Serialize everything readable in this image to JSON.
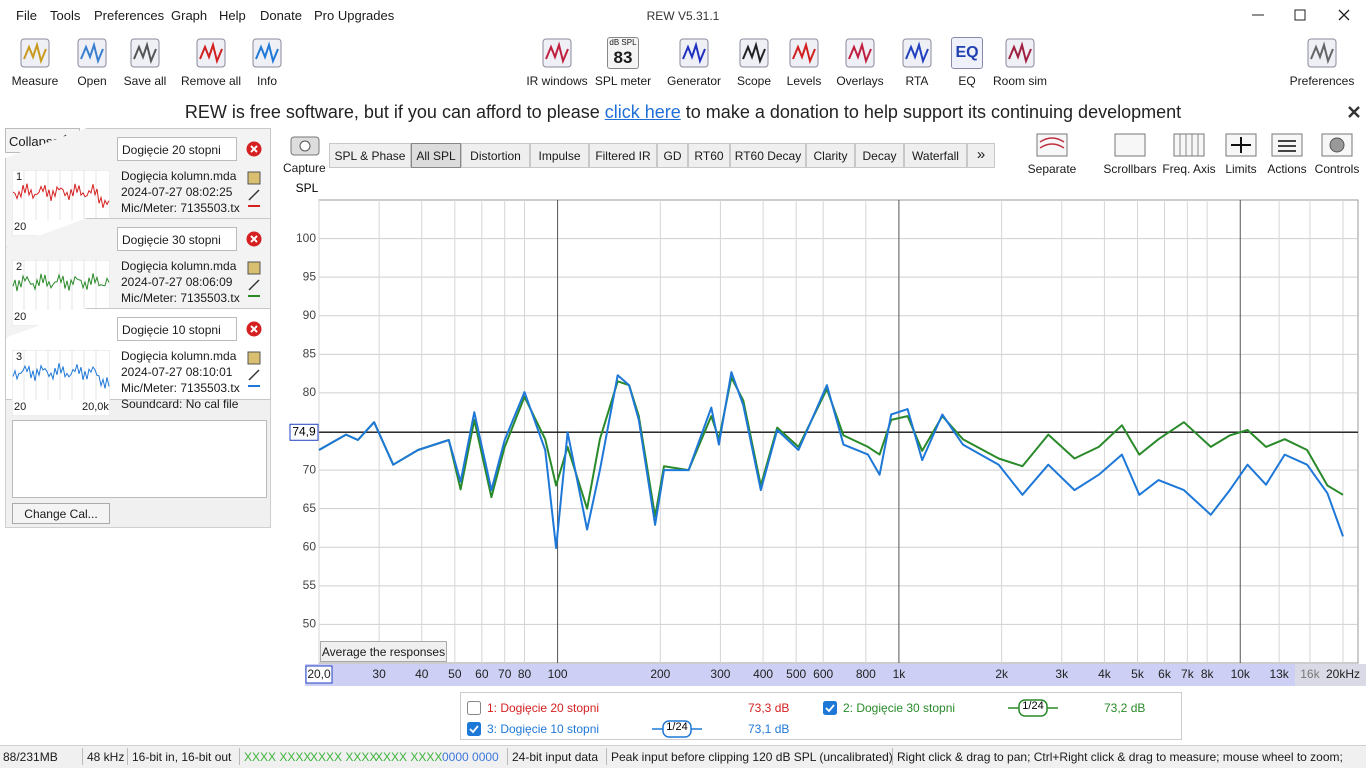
{
  "window": {
    "title": "REW V5.31.1"
  },
  "menu": [
    "File",
    "Tools",
    "Preferences",
    "Graph",
    "Help",
    "Donate",
    "Pro Upgrades"
  ],
  "toolbar": {
    "left": [
      "Measure",
      "Open",
      "Save all",
      "Remove all",
      "Info"
    ],
    "center": [
      "IR windows",
      "SPL meter",
      "Generator",
      "Scope",
      "Levels",
      "Overlays",
      "RTA",
      "EQ",
      "Room sim"
    ],
    "spl_meter_icon": {
      "unit": "dB SPL",
      "value": "83"
    },
    "eq_icon": "EQ",
    "right": "Preferences"
  },
  "banner": {
    "before": "REW is free software, but if you can afford to please",
    "link": "click here",
    "after": "to make a donation to help support its continuing development"
  },
  "panel": {
    "collapse": "Collapse",
    "measurements": [
      {
        "number": "1",
        "name": "Dogięcie 20 stopni",
        "file": "Dogięcia kolumn.mda",
        "date": "2024-07-27 08:02:25",
        "mic": "Mic/Meter: 7135503.tx",
        "thumb_min": "20",
        "color": "#d62020"
      },
      {
        "number": "2",
        "name": "Dogięcie 30 stopni",
        "file": "Dogięcia kolumn.mda",
        "date": "2024-07-27 08:06:09",
        "mic": "Mic/Meter: 7135503.tx",
        "thumb_min": "20",
        "color": "#2a8a2a"
      },
      {
        "number": "3",
        "name": "Dogięcie 10 stopni",
        "file": "Dogięcia kolumn.mda",
        "date": "2024-07-27 08:10:01",
        "mic": "Mic/Meter: 7135503.tx",
        "thumb_min": "20",
        "thumb_max": "20,0k",
        "soundcard": "Soundcard: No cal file",
        "color": "#1e78d8"
      }
    ],
    "change_cal": "Change Cal..."
  },
  "graph_toolbar": {
    "capture": "Capture",
    "tabs": [
      "SPL & Phase",
      "All SPL",
      "Distortion",
      "Impulse",
      "Filtered IR",
      "GD",
      "RT60",
      "RT60 Decay",
      "Clarity",
      "Decay",
      "Waterfall"
    ],
    "selected_tab": 1,
    "more": "»",
    "tools": [
      "Separate",
      "Scrollbars",
      "Freq. Axis",
      "Limits",
      "Actions",
      "Controls"
    ]
  },
  "chart_data": {
    "type": "line",
    "y_label": "SPL",
    "log_x": true,
    "grid": true,
    "xlim": [
      20,
      20000
    ],
    "ylim": [
      45,
      105
    ],
    "yticks": [
      50,
      55,
      60,
      65,
      70,
      75,
      80,
      85,
      90,
      95,
      100
    ],
    "xticks": [
      {
        "value": 20,
        "label": "20,0"
      },
      30,
      40,
      50,
      60,
      70,
      80,
      100,
      200,
      300,
      400,
      500,
      600,
      800,
      {
        "value": 1000,
        "label": "1k"
      },
      {
        "value": 2000,
        "label": "2k"
      },
      {
        "value": 3000,
        "label": "3k"
      },
      {
        "value": 4000,
        "label": "4k"
      },
      {
        "value": 5000,
        "label": "5k"
      },
      {
        "value": 6000,
        "label": "6k"
      },
      {
        "value": 7000,
        "label": "7k"
      },
      {
        "value": 8000,
        "label": "8k"
      },
      {
        "value": 10000,
        "label": "10k"
      },
      {
        "value": 13000,
        "label": "13k"
      },
      {
        "value": 16000,
        "label": "16k"
      },
      {
        "value": 20000,
        "label": "20kHz"
      }
    ],
    "reference_line": {
      "value": 74.9,
      "label": "74,9"
    },
    "x": [
      20,
      24,
      26,
      29,
      33,
      39,
      48,
      52,
      57,
      64,
      70,
      80,
      92,
      99,
      107,
      122,
      133,
      150,
      162,
      173,
      193,
      205,
      242,
      282,
      297,
      323,
      350,
      394,
      440,
      508,
      615,
      688,
      812,
      878,
      949,
      1060,
      1170,
      1340,
      1540,
      1960,
      2300,
      2740,
      3270,
      3850,
      4500,
      5060,
      5760,
      6840,
      8200,
      9320,
      10500,
      11900,
      13500,
      15700,
      18000,
      20000
    ],
    "series": [
      {
        "name": "2: Dogięcie 30 stopni",
        "color": "#2a8a2a",
        "level": "73,2 dB",
        "smoothing": "1/24",
        "checked": true,
        "values": [
          72.6,
          74.6,
          73.9,
          76.2,
          70.7,
          72.6,
          73.9,
          67.5,
          76.5,
          66.5,
          73,
          79.5,
          74,
          68,
          73,
          65,
          74,
          81.5,
          81,
          77,
          64,
          70.5,
          70,
          77,
          74,
          82,
          79,
          68,
          75.5,
          73,
          80.5,
          74.5,
          73,
          72,
          76.5,
          77,
          72.5,
          77,
          74,
          71.5,
          70.5,
          74.6,
          71.5,
          73,
          75.8,
          72,
          74,
          76.2,
          73,
          74.5,
          75.2,
          73,
          74,
          72.6,
          68,
          66.8
        ]
      },
      {
        "name": "3: Dogięcie 10 stopni",
        "color": "#1e78d8",
        "level": "73,1 dB",
        "smoothing": "1/24",
        "checked": true,
        "values": [
          72.6,
          74.6,
          73.9,
          76.2,
          70.7,
          72.6,
          73.9,
          68.5,
          77.5,
          67.4,
          73.9,
          80.1,
          72.6,
          59.9,
          74.9,
          62.3,
          70,
          82.3,
          81,
          76.5,
          62.9,
          70,
          70,
          78.1,
          73.3,
          82.7,
          78.4,
          67.4,
          75.2,
          72.6,
          81,
          73.3,
          72,
          69.4,
          77.2,
          77.9,
          71.3,
          77.2,
          73.3,
          70.7,
          66.8,
          70.7,
          67.4,
          69.4,
          72,
          66.8,
          68.7,
          67.4,
          64.2,
          67.4,
          70.7,
          68.1,
          72,
          70.7,
          67,
          61.4
        ]
      }
    ],
    "hidden_series": [
      {
        "name": "1: Dogięcie 20 stopni",
        "color": "#d62020",
        "level": "73,3 dB",
        "checked": false
      }
    ]
  },
  "average_button": "Average the responses",
  "status": [
    {
      "text": "88/231MB"
    },
    {
      "text": "48 kHz"
    },
    {
      "text": "16-bit in, 16-bit out"
    },
    {
      "text": "XXXX XXXX",
      "color": "#3cb43c"
    },
    {
      "text": "XXXX XXXX",
      "color": "#3cb43c"
    },
    {
      "text": "XXXX XXXX",
      "color": "#3cb43c"
    },
    {
      "text": "0000 0000",
      "color": "#3c78dc"
    },
    {
      "text": "24-bit input data"
    },
    {
      "text": "Peak input before clipping 120 dB SPL (uncalibrated)"
    },
    {
      "text": "Right click & drag to pan; Ctrl+Right click & drag to measure; mouse wheel to zoom;"
    }
  ]
}
